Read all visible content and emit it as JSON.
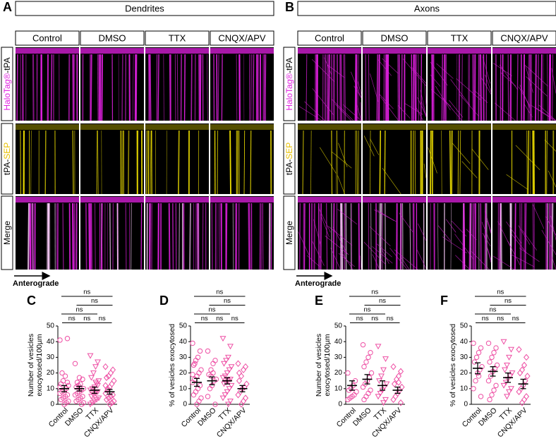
{
  "panels": [
    {
      "letter": "A",
      "title": "Dendrites",
      "conditions": [
        "Control",
        "DMSO",
        "TTX",
        "CNQX/APV"
      ],
      "rows": [
        [
          "HaloTag®",
          "-tPA"
        ],
        [
          "tPA-",
          "SEP"
        ],
        [
          "Merge"
        ]
      ],
      "row_colors": [
        [
          "#e020e0",
          "#000000"
        ],
        [
          "#000000",
          "#e8c000"
        ],
        [
          "#000000"
        ]
      ],
      "arrow_label": "Anterograde"
    },
    {
      "letter": "B",
      "title": "Axons",
      "conditions": [
        "Control",
        "DMSO",
        "TTX",
        "CNQX/APV"
      ],
      "rows": [
        [
          "HaloTag®",
          "-tPA"
        ],
        [
          "tPA-",
          "SEP"
        ],
        [
          "Merge"
        ]
      ],
      "row_colors": [
        [
          "#e020e0",
          "#000000"
        ],
        [
          "#000000",
          "#e8c000"
        ],
        [
          "#000000"
        ]
      ],
      "arrow_label": "Anterograde"
    }
  ],
  "chart_data": [
    {
      "letter": "C",
      "type": "dot",
      "ylabel": [
        "Number of vesicles",
        "exocytosed/100µm"
      ],
      "categories": [
        "Control",
        "DMSO",
        "TTX",
        "CNQX/APV"
      ],
      "values": [
        [
          41,
          42,
          18,
          15,
          13,
          12,
          10,
          9,
          8,
          7,
          6,
          5,
          4,
          3,
          2,
          1,
          0,
          20,
          11,
          14
        ],
        [
          26,
          16,
          13,
          12,
          11,
          10,
          9,
          8,
          7,
          6,
          5,
          4,
          3,
          2,
          1,
          0,
          17,
          14
        ],
        [
          31,
          27,
          24,
          20,
          17,
          15,
          13,
          11,
          10,
          9,
          8,
          7,
          6,
          5,
          4,
          3,
          2,
          1,
          0,
          12,
          14
        ],
        [
          24,
          22,
          20,
          18,
          17,
          15,
          13,
          11,
          9,
          7,
          6,
          5,
          4,
          3,
          2,
          1,
          0,
          10,
          12
        ]
      ],
      "mean": [
        10,
        10,
        9,
        8
      ],
      "sem": [
        2,
        1.5,
        2,
        1.5
      ],
      "markers": [
        "circle",
        "circle",
        "triangle-down",
        "diamond"
      ],
      "color": "#ee4fa4",
      "ylim": [
        0,
        50
      ],
      "yticks": [
        0,
        10,
        20,
        30,
        40,
        50
      ],
      "significance": [
        "ns",
        "ns",
        "ns",
        "ns",
        "ns",
        "ns"
      ]
    },
    {
      "letter": "D",
      "type": "dot",
      "ylabel": [
        "% of vesicles exocytosed"
      ],
      "categories": [
        "Control",
        "DMSO",
        "TTX",
        "CNQX/APV"
      ],
      "values": [
        [
          39,
          34,
          30,
          28,
          25,
          22,
          20,
          18,
          16,
          14,
          12,
          10,
          8,
          6,
          4,
          2,
          0,
          26,
          19
        ],
        [
          34,
          28,
          26,
          22,
          19,
          16,
          15,
          12,
          10,
          5,
          0,
          20,
          18
        ],
        [
          42,
          37,
          30,
          28,
          26,
          24,
          22,
          20,
          18,
          17,
          16,
          15,
          14,
          13,
          12,
          10,
          8,
          6,
          4,
          2,
          0
        ],
        [
          26,
          24,
          22,
          18,
          15,
          13,
          11,
          10,
          8,
          6,
          4,
          2,
          0,
          20
        ]
      ],
      "mean": [
        14,
        15,
        15,
        10
      ],
      "sem": [
        2.5,
        2.5,
        2,
        2
      ],
      "markers": [
        "circle",
        "circle",
        "triangle-down",
        "diamond"
      ],
      "color": "#ee4fa4",
      "ylim": [
        0,
        50
      ],
      "yticks": [
        0,
        10,
        20,
        30,
        40,
        50
      ],
      "significance": [
        "ns",
        "ns",
        "ns",
        "ns",
        "ns",
        "ns"
      ]
    },
    {
      "letter": "E",
      "type": "dot",
      "ylabel": [
        "Number of vesicles",
        "exocytosed/100µm"
      ],
      "categories": [
        "Control",
        "DMSO",
        "TTX",
        "CNQX/APV"
      ],
      "values": [
        [
          20,
          15,
          12,
          10,
          9,
          8,
          6,
          5,
          4,
          3
        ],
        [
          38,
          33,
          30,
          27,
          24,
          20,
          17,
          15,
          13,
          11,
          9,
          7,
          5,
          3
        ],
        [
          37,
          29,
          22,
          18,
          15,
          13,
          11,
          9,
          7,
          5,
          3,
          1
        ],
        [
          24,
          21,
          18,
          16,
          13,
          11,
          9,
          7,
          5,
          3,
          1,
          14
        ]
      ],
      "mean": [
        12,
        16,
        12,
        9
      ],
      "sem": [
        3,
        3,
        3,
        2
      ],
      "markers": [
        "circle",
        "circle",
        "triangle-down",
        "diamond"
      ],
      "color": "#ee4fa4",
      "ylim": [
        0,
        50
      ],
      "yticks": [
        0,
        10,
        20,
        30,
        40,
        50
      ],
      "significance": [
        "ns",
        "ns",
        "ns",
        "ns",
        "ns",
        "ns"
      ]
    },
    {
      "letter": "F",
      "type": "dot",
      "ylabel": [
        "% of vesicles exocytosed"
      ],
      "categories": [
        "Control",
        "DMSO",
        "TTX",
        "CNQX/APV"
      ],
      "values": [
        [
          39,
          36,
          33,
          30,
          27,
          24,
          22,
          20,
          15,
          10,
          5,
          18
        ],
        [
          39,
          36,
          33,
          30,
          27,
          25,
          23,
          21,
          18,
          15,
          12,
          9,
          6,
          3
        ],
        [
          40,
          35,
          30,
          25,
          22,
          20,
          18,
          16,
          14,
          12,
          10,
          8,
          5
        ],
        [
          35,
          30,
          25,
          22,
          20,
          18,
          15,
          12,
          10,
          8,
          5,
          3,
          1
        ]
      ],
      "mean": [
        23,
        21,
        17,
        13
      ],
      "sem": [
        3.5,
        3,
        3,
        3
      ],
      "markers": [
        "circle",
        "circle",
        "triangle-down",
        "diamond"
      ],
      "color": "#ee4fa4",
      "ylim": [
        0,
        50
      ],
      "yticks": [
        0,
        10,
        20,
        30,
        40,
        50
      ],
      "significance": [
        "ns",
        "ns",
        "ns",
        "ns",
        "ns",
        "ns"
      ]
    }
  ]
}
